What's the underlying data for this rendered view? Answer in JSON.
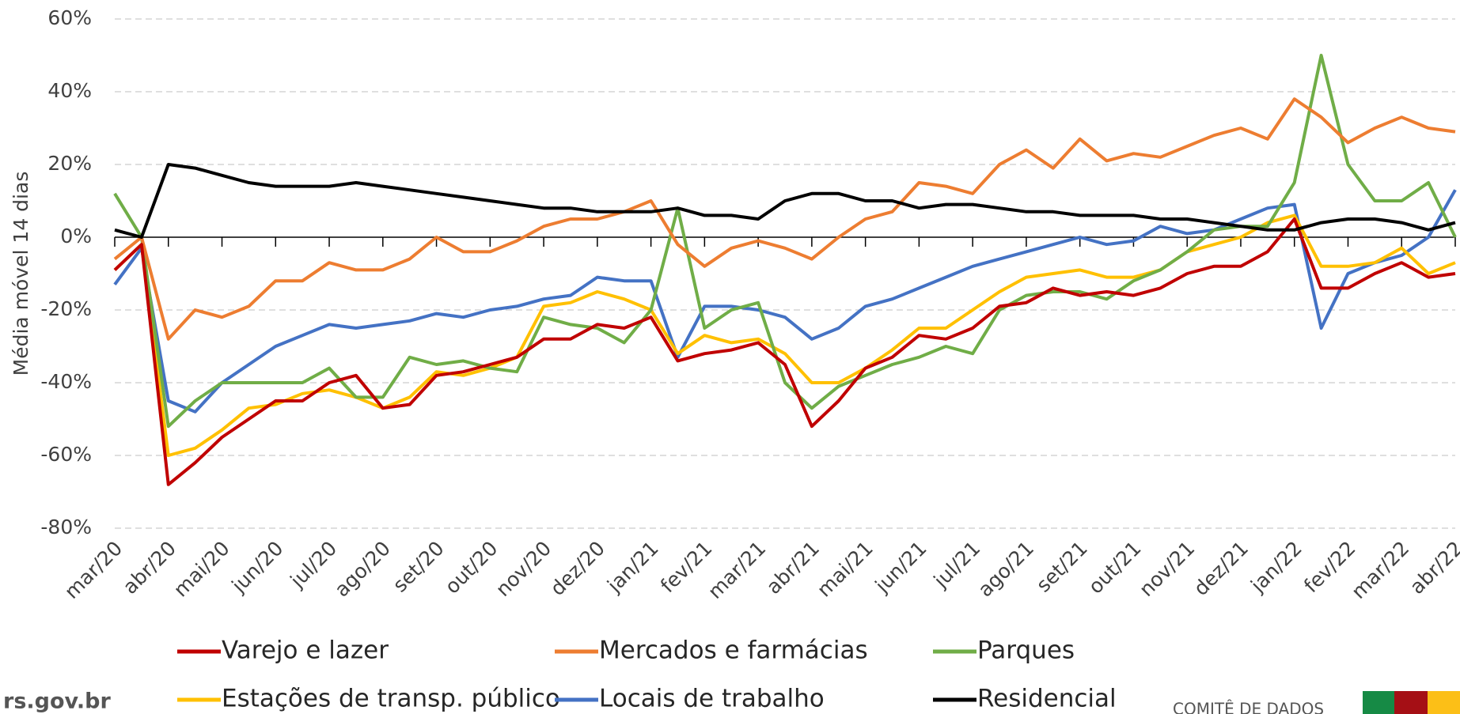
{
  "chart_data": {
    "type": "line",
    "y_label": "Média móvel 14 dias",
    "categories": [
      "mar/20",
      null,
      "abr/20",
      null,
      "mai/20",
      null,
      "jun/20",
      null,
      "jul/20",
      null,
      "ago/20",
      null,
      "set/20",
      null,
      "out/20",
      null,
      "nov/20",
      null,
      "dez/20",
      null,
      "jan/21",
      null,
      "fev/21",
      null,
      "mar/21",
      null,
      "abr/21",
      null,
      "mai/21",
      null,
      "jun/21",
      null,
      "jul/21",
      null,
      "ago/21",
      null,
      "set/21",
      null,
      "out/21",
      null,
      "nov/21",
      null,
      "dez/21",
      null,
      "jan/22",
      null,
      "fev/22",
      null,
      "mar/22",
      null,
      "abr/22"
    ],
    "series": [
      {
        "name": "Varejo e lazer",
        "color": "#c00000",
        "values": [
          -9,
          -2,
          -68,
          -62,
          -55,
          -50,
          -45,
          -45,
          -40,
          -38,
          -47,
          -46,
          -38,
          -37,
          -35,
          -33,
          -28,
          -28,
          -24,
          -25,
          -22,
          -34,
          -32,
          -31,
          -29,
          -35,
          -52,
          -45,
          -36,
          -33,
          -27,
          -28,
          -25,
          -19,
          -18,
          -14,
          -16,
          -15,
          -16,
          -14,
          -10,
          -8,
          -8,
          -4,
          5,
          -14,
          -14,
          -10,
          -7,
          -11,
          -10
        ]
      },
      {
        "name": "Mercados e farmácias",
        "color": "#ed7d31",
        "values": [
          -6,
          0,
          -28,
          -20,
          -22,
          -19,
          -12,
          -12,
          -7,
          -9,
          -9,
          -6,
          0,
          -4,
          -4,
          -1,
          3,
          5,
          5,
          7,
          10,
          -2,
          -8,
          -3,
          -1,
          -3,
          -6,
          0,
          5,
          7,
          15,
          14,
          12,
          20,
          24,
          19,
          27,
          21,
          23,
          22,
          25,
          28,
          30,
          27,
          38,
          33,
          26,
          30,
          33,
          30,
          29
        ]
      },
      {
        "name": "Parques",
        "color": "#70ad47",
        "values": [
          12,
          0,
          -52,
          -45,
          -40,
          -40,
          -40,
          -40,
          -36,
          -44,
          -44,
          -33,
          -35,
          -34,
          -36,
          -37,
          -22,
          -24,
          -25,
          -29,
          -20,
          8,
          -25,
          -20,
          -18,
          -40,
          -47,
          -41,
          -38,
          -35,
          -33,
          -30,
          -32,
          -20,
          -16,
          -15,
          -15,
          -17,
          -12,
          -9,
          -4,
          2,
          3,
          3,
          15,
          50,
          20,
          10,
          10,
          15,
          0
        ]
      },
      {
        "name": "Estações de transp. público",
        "color": "#ffc000",
        "values": [
          -9,
          -2,
          -60,
          -58,
          -53,
          -47,
          -46,
          -43,
          -42,
          -44,
          -47,
          -44,
          -37,
          -38,
          -36,
          -33,
          -19,
          -18,
          -15,
          -17,
          -20,
          -32,
          -27,
          -29,
          -28,
          -32,
          -40,
          -40,
          -36,
          -31,
          -25,
          -25,
          -20,
          -15,
          -11,
          -10,
          -9,
          -11,
          -11,
          -9,
          -4,
          -2,
          0,
          4,
          6,
          -8,
          -8,
          -7,
          -3,
          -10,
          -7
        ]
      },
      {
        "name": "Locais de trabalho",
        "color": "#4472c4",
        "values": [
          -13,
          -3,
          -45,
          -48,
          -40,
          -35,
          -30,
          -27,
          -24,
          -25,
          -24,
          -23,
          -21,
          -22,
          -20,
          -19,
          -17,
          -16,
          -11,
          -12,
          -12,
          -33,
          -19,
          -19,
          -20,
          -22,
          -28,
          -25,
          -19,
          -17,
          -14,
          -11,
          -8,
          -6,
          -4,
          -2,
          0,
          -2,
          -1,
          3,
          1,
          2,
          5,
          8,
          9,
          -25,
          -10,
          -7,
          -5,
          0,
          13
        ]
      },
      {
        "name": "Residencial",
        "color": "#000000",
        "values": [
          2,
          0,
          20,
          19,
          17,
          15,
          14,
          14,
          14,
          15,
          14,
          13,
          12,
          11,
          10,
          9,
          8,
          8,
          7,
          7,
          7,
          8,
          6,
          6,
          5,
          10,
          12,
          12,
          10,
          10,
          8,
          9,
          9,
          8,
          7,
          7,
          6,
          6,
          6,
          5,
          5,
          4,
          3,
          2,
          2,
          4,
          5,
          5,
          4,
          2,
          4
        ]
      }
    ],
    "ylim": [
      -80,
      60
    ],
    "yticks": [
      {
        "value": -80,
        "label": "-80%"
      },
      {
        "value": -60,
        "label": "-60%"
      },
      {
        "value": -40,
        "label": "-40%"
      },
      {
        "value": -20,
        "label": "-20%"
      },
      {
        "value": 0,
        "label": "0%"
      },
      {
        "value": 20,
        "label": "20%"
      },
      {
        "value": 40,
        "label": "40%"
      },
      {
        "value": 60,
        "label": "60%"
      }
    ],
    "grid": true,
    "legend": "bottom",
    "footer": {
      "source": "rs.gov.br",
      "org": "COMITÊ DE DADOS"
    }
  }
}
